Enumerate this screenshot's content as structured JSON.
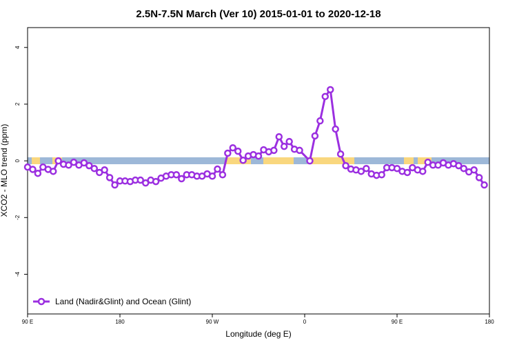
{
  "chart_data": {
    "type": "line",
    "title": "2.5N-7.5N March (Ver 10)   2015-01-01 to 2020-12-18",
    "x_label": "Longitude (deg E)",
    "y_label": "XCO2 - MLO trend (ppm)",
    "xlim": [
      90,
      540
    ],
    "ylim": [
      -5.4,
      4.7
    ],
    "xticks": [
      {
        "value": 90,
        "label": "90 E"
      },
      {
        "value": 180,
        "label": "180"
      },
      {
        "value": 270,
        "label": "90 W"
      },
      {
        "value": 360,
        "label": "0"
      },
      {
        "value": 450,
        "label": "90 E"
      },
      {
        "value": 540,
        "label": "180"
      }
    ],
    "yticks": [
      -4,
      -2,
      0,
      2,
      4
    ],
    "legend_position": "bottom-left",
    "series": [
      {
        "name": "Land (Nadir&Glint) and Ocean (Glint)",
        "color": "#9b2fe0",
        "x": [
          90,
          95,
          100,
          105,
          110,
          115,
          120,
          125,
          130,
          135,
          140,
          145,
          150,
          155,
          160,
          165,
          170,
          175,
          180,
          185,
          190,
          195,
          200,
          205,
          210,
          215,
          220,
          225,
          230,
          235,
          240,
          245,
          250,
          255,
          260,
          265,
          270,
          275,
          280,
          285,
          290,
          295,
          300,
          305,
          310,
          315,
          320,
          325,
          330,
          335,
          340,
          345,
          350,
          355,
          365,
          370,
          375,
          380,
          385,
          390,
          395,
          400,
          405,
          410,
          415,
          420,
          425,
          430,
          435,
          440,
          445,
          450,
          455,
          460,
          465,
          470,
          475,
          480,
          485,
          490,
          495,
          500,
          505,
          510,
          515,
          520,
          525,
          530,
          535
        ],
        "values": [
          -0.22,
          -0.3,
          -0.44,
          -0.22,
          -0.3,
          -0.37,
          0.0,
          -0.12,
          -0.15,
          -0.05,
          -0.15,
          -0.07,
          -0.17,
          -0.27,
          -0.41,
          -0.32,
          -0.59,
          -0.85,
          -0.71,
          -0.71,
          -0.73,
          -0.68,
          -0.68,
          -0.78,
          -0.68,
          -0.73,
          -0.61,
          -0.54,
          -0.49,
          -0.49,
          -0.63,
          -0.49,
          -0.49,
          -0.54,
          -0.54,
          -0.46,
          -0.54,
          -0.29,
          -0.49,
          0.27,
          0.46,
          0.34,
          0.02,
          0.17,
          0.22,
          0.17,
          0.39,
          0.32,
          0.37,
          0.85,
          0.51,
          0.68,
          0.41,
          0.37,
          0.0,
          0.88,
          1.41,
          2.27,
          2.51,
          1.12,
          0.24,
          -0.17,
          -0.29,
          -0.32,
          -0.37,
          -0.27,
          -0.46,
          -0.51,
          -0.49,
          -0.24,
          -0.24,
          -0.27,
          -0.37,
          -0.41,
          -0.24,
          -0.32,
          -0.37,
          -0.05,
          -0.15,
          -0.15,
          -0.07,
          -0.15,
          -0.1,
          -0.17,
          -0.27,
          -0.39,
          -0.32,
          -0.59,
          -0.85
        ]
      }
    ]
  }
}
